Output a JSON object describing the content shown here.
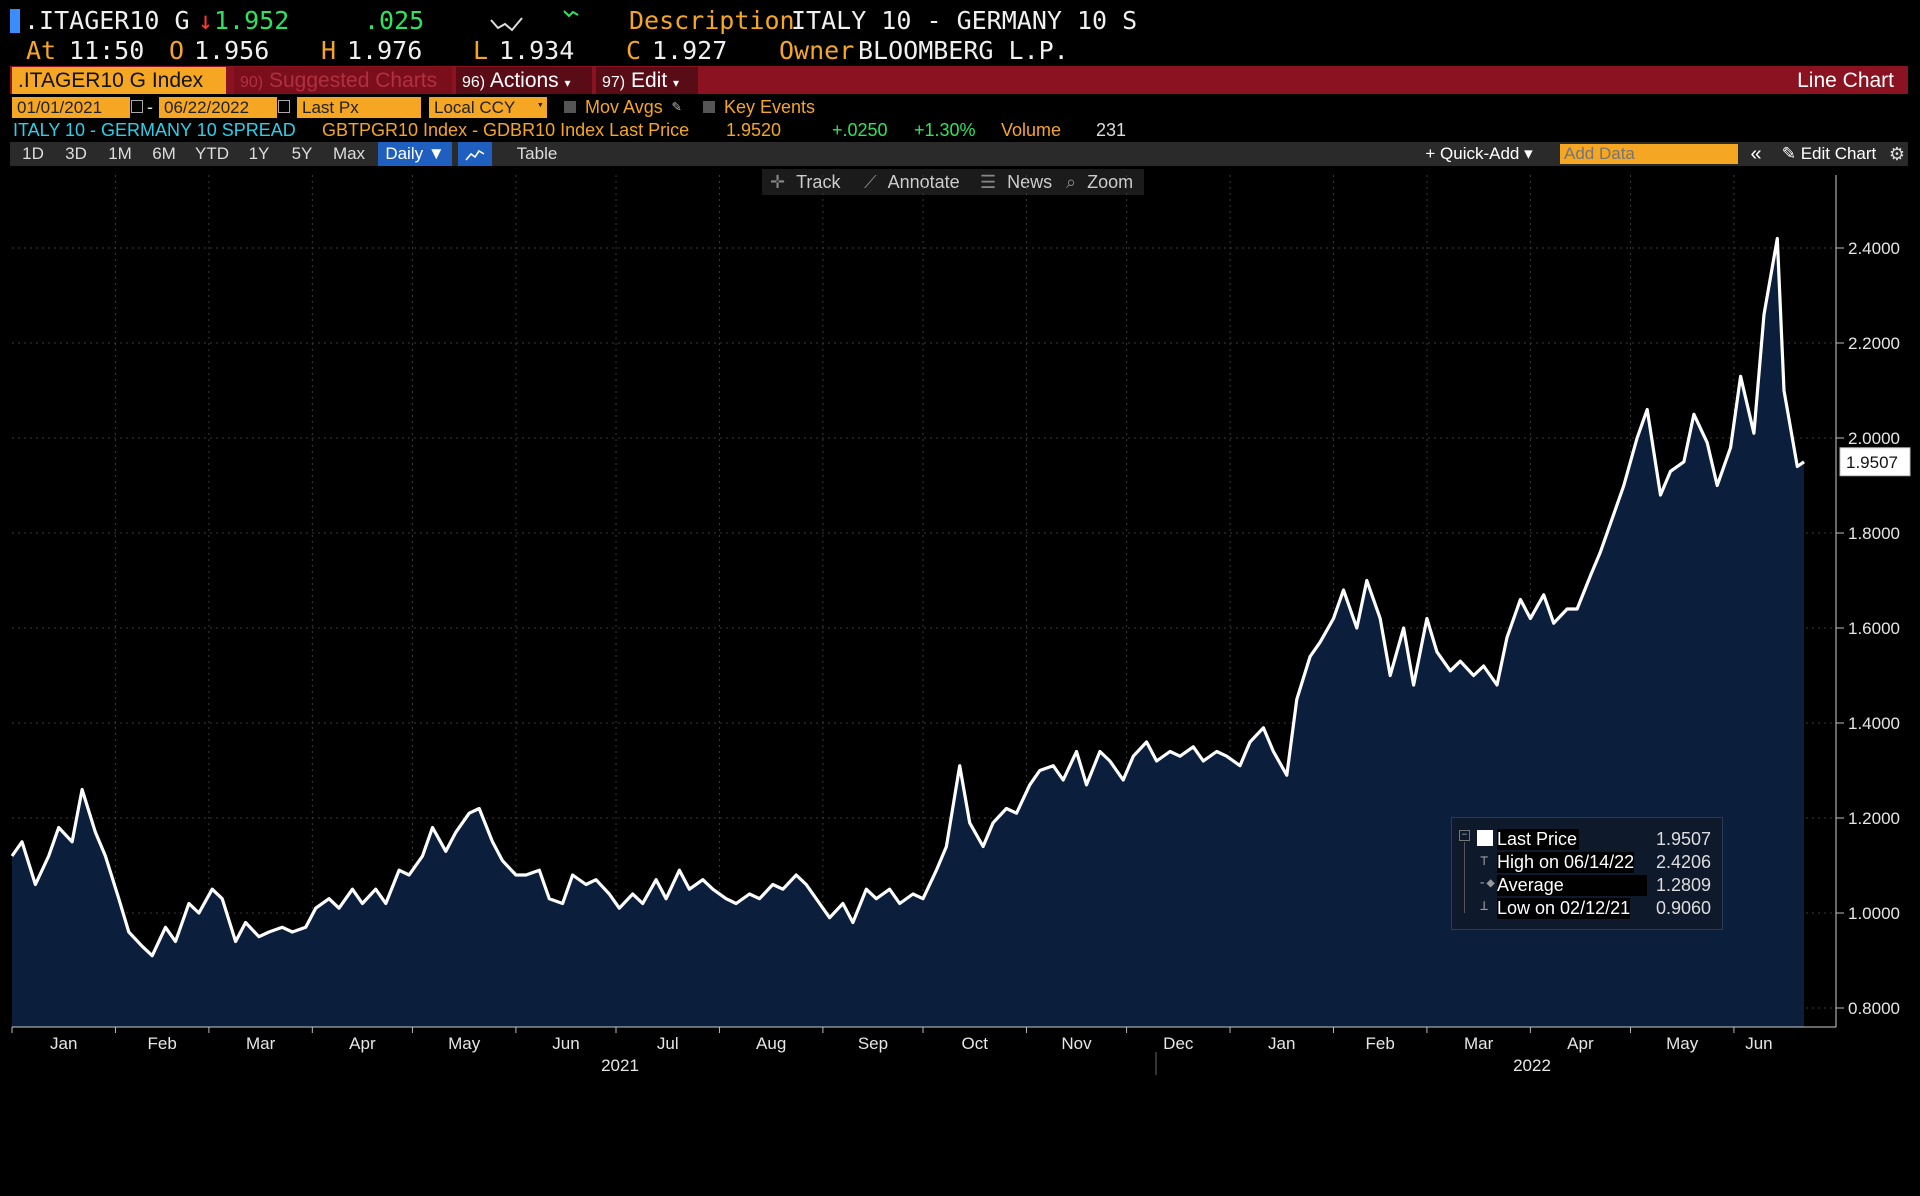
{
  "header": {
    "ticker": ".ITAGER10 G",
    "arrow": "↓",
    "last": "1.952",
    "change": ".025",
    "desc_label": "Description",
    "desc_value": "ITALY 10 - GERMANY 10 S",
    "at_label": "At",
    "at_value": "11:50",
    "open_label": "O",
    "open_value": "1.956",
    "high_label": "H",
    "high_value": "1.976",
    "low_label": "L",
    "low_value": "1.934",
    "close_label": "C",
    "close_value": "1.927",
    "owner_label": "Owner",
    "owner_value": "BLOOMBERG L.P."
  },
  "menubar": {
    "security": ".ITAGER10 G Index",
    "suggested_num": "90)",
    "suggested": "Suggested Charts",
    "actions_num": "96)",
    "actions": "Actions",
    "edit_num": "97)",
    "edit": "Edit",
    "chart_type": "Line Chart"
  },
  "settings": {
    "start_date": "01/01/2021",
    "dash": "-",
    "end_date": "06/22/2022",
    "field": "Last Px",
    "currency": "Local CCY",
    "mov_avgs": "Mov Avgs",
    "key_events": "Key Events"
  },
  "legend_row": {
    "name": "ITALY 10 - GERMANY 10 SPREAD",
    "formula": "GBTPGR10 Index - GDBR10 Index Last Price",
    "price": "1.9520",
    "chg": "+.0250",
    "pct": "+1.30%",
    "vol_label": "Volume",
    "vol": "231"
  },
  "toolbar": {
    "periods": [
      "1D",
      "3D",
      "1M",
      "6M",
      "YTD",
      "1Y",
      "5Y",
      "Max"
    ],
    "frequency": "Daily ▼",
    "table": "Table",
    "quick_add": "+ Quick-Add ▾",
    "add_data_placeholder": "Add Data",
    "collapse": "«",
    "edit_chart": "Edit Chart"
  },
  "tools": {
    "track": "Track",
    "annotate": "Annotate",
    "news": "News",
    "zoom": "Zoom"
  },
  "colors": {
    "orange": "#f5a623",
    "red_bar": "#8b1220",
    "area_fill": "#0b1f3d",
    "line": "#ffffff",
    "green": "#2ee35f"
  },
  "chart_data": {
    "type": "area",
    "title": "",
    "xlabel": "",
    "ylabel": "",
    "ylim": [
      0.78,
      2.5
    ],
    "yticks": [
      "2.4000",
      "2.2000",
      "2.0000",
      "1.8000",
      "1.6000",
      "1.4000",
      "1.2000",
      "1.0000",
      "0.8000"
    ],
    "ytick_values": [
      2.4,
      2.2,
      2.0,
      1.8,
      1.6,
      1.4,
      1.2,
      1.0,
      0.8
    ],
    "month_labels": [
      "Jan",
      "Feb",
      "Mar",
      "Apr",
      "May",
      "Jun",
      "Jul",
      "Aug",
      "Sep",
      "Oct",
      "Nov",
      "Dec",
      "Jan",
      "Feb",
      "Mar",
      "Apr",
      "May",
      "Jun"
    ],
    "year_labels": [
      "2021",
      "2022"
    ],
    "last_value_label": "1.9507",
    "grid": true,
    "series": [
      {
        "name": "Last Price",
        "points": [
          [
            "2021-01-01",
            1.12
          ],
          [
            "2021-01-04",
            1.15
          ],
          [
            "2021-01-08",
            1.06
          ],
          [
            "2021-01-12",
            1.12
          ],
          [
            "2021-01-15",
            1.18
          ],
          [
            "2021-01-19",
            1.15
          ],
          [
            "2021-01-22",
            1.26
          ],
          [
            "2021-01-26",
            1.17
          ],
          [
            "2021-01-29",
            1.12
          ],
          [
            "2021-02-02",
            1.03
          ],
          [
            "2021-02-05",
            0.96
          ],
          [
            "2021-02-09",
            0.93
          ],
          [
            "2021-02-12",
            0.91
          ],
          [
            "2021-02-16",
            0.97
          ],
          [
            "2021-02-19",
            0.94
          ],
          [
            "2021-02-23",
            1.02
          ],
          [
            "2021-02-26",
            1.0
          ],
          [
            "2021-03-02",
            1.05
          ],
          [
            "2021-03-05",
            1.03
          ],
          [
            "2021-03-09",
            0.94
          ],
          [
            "2021-03-12",
            0.98
          ],
          [
            "2021-03-16",
            0.95
          ],
          [
            "2021-03-19",
            0.96
          ],
          [
            "2021-03-23",
            0.97
          ],
          [
            "2021-03-26",
            0.96
          ],
          [
            "2021-03-30",
            0.97
          ],
          [
            "2021-04-02",
            1.01
          ],
          [
            "2021-04-06",
            1.03
          ],
          [
            "2021-04-09",
            1.01
          ],
          [
            "2021-04-13",
            1.05
          ],
          [
            "2021-04-16",
            1.02
          ],
          [
            "2021-04-20",
            1.05
          ],
          [
            "2021-04-23",
            1.02
          ],
          [
            "2021-04-27",
            1.09
          ],
          [
            "2021-04-30",
            1.08
          ],
          [
            "2021-05-04",
            1.12
          ],
          [
            "2021-05-07",
            1.18
          ],
          [
            "2021-05-11",
            1.13
          ],
          [
            "2021-05-14",
            1.17
          ],
          [
            "2021-05-18",
            1.21
          ],
          [
            "2021-05-21",
            1.22
          ],
          [
            "2021-05-25",
            1.15
          ],
          [
            "2021-05-28",
            1.11
          ],
          [
            "2021-06-01",
            1.08
          ],
          [
            "2021-06-04",
            1.08
          ],
          [
            "2021-06-08",
            1.09
          ],
          [
            "2021-06-11",
            1.03
          ],
          [
            "2021-06-15",
            1.02
          ],
          [
            "2021-06-18",
            1.08
          ],
          [
            "2021-06-22",
            1.06
          ],
          [
            "2021-06-25",
            1.07
          ],
          [
            "2021-06-29",
            1.04
          ],
          [
            "2021-07-02",
            1.01
          ],
          [
            "2021-07-06",
            1.04
          ],
          [
            "2021-07-09",
            1.02
          ],
          [
            "2021-07-13",
            1.07
          ],
          [
            "2021-07-16",
            1.03
          ],
          [
            "2021-07-20",
            1.09
          ],
          [
            "2021-07-23",
            1.05
          ],
          [
            "2021-07-27",
            1.07
          ],
          [
            "2021-07-30",
            1.05
          ],
          [
            "2021-08-03",
            1.03
          ],
          [
            "2021-08-06",
            1.02
          ],
          [
            "2021-08-10",
            1.04
          ],
          [
            "2021-08-13",
            1.03
          ],
          [
            "2021-08-17",
            1.06
          ],
          [
            "2021-08-20",
            1.05
          ],
          [
            "2021-08-24",
            1.08
          ],
          [
            "2021-08-27",
            1.06
          ],
          [
            "2021-08-31",
            1.02
          ],
          [
            "2021-09-03",
            0.99
          ],
          [
            "2021-09-07",
            1.02
          ],
          [
            "2021-09-10",
            0.98
          ],
          [
            "2021-09-14",
            1.05
          ],
          [
            "2021-09-17",
            1.03
          ],
          [
            "2021-09-21",
            1.05
          ],
          [
            "2021-09-24",
            1.02
          ],
          [
            "2021-09-28",
            1.04
          ],
          [
            "2021-10-01",
            1.03
          ],
          [
            "2021-10-05",
            1.09
          ],
          [
            "2021-10-08",
            1.14
          ],
          [
            "2021-10-12",
            1.31
          ],
          [
            "2021-10-15",
            1.19
          ],
          [
            "2021-10-19",
            1.14
          ],
          [
            "2021-10-22",
            1.19
          ],
          [
            "2021-10-26",
            1.22
          ],
          [
            "2021-10-29",
            1.21
          ],
          [
            "2021-11-02",
            1.27
          ],
          [
            "2021-11-05",
            1.3
          ],
          [
            "2021-11-09",
            1.31
          ],
          [
            "2021-11-12",
            1.28
          ],
          [
            "2021-11-16",
            1.34
          ],
          [
            "2021-11-19",
            1.27
          ],
          [
            "2021-11-23",
            1.34
          ],
          [
            "2021-11-26",
            1.32
          ],
          [
            "2021-11-30",
            1.28
          ],
          [
            "2021-12-03",
            1.33
          ],
          [
            "2021-12-07",
            1.36
          ],
          [
            "2021-12-10",
            1.32
          ],
          [
            "2021-12-14",
            1.34
          ],
          [
            "2021-12-17",
            1.33
          ],
          [
            "2021-12-21",
            1.35
          ],
          [
            "2021-12-24",
            1.32
          ],
          [
            "2021-12-28",
            1.34
          ],
          [
            "2021-12-31",
            1.33
          ],
          [
            "2022-01-04",
            1.31
          ],
          [
            "2022-01-07",
            1.36
          ],
          [
            "2022-01-11",
            1.39
          ],
          [
            "2022-01-14",
            1.34
          ],
          [
            "2022-01-18",
            1.29
          ],
          [
            "2022-01-21",
            1.45
          ],
          [
            "2022-01-25",
            1.54
          ],
          [
            "2022-01-28",
            1.57
          ],
          [
            "2022-02-01",
            1.62
          ],
          [
            "2022-02-04",
            1.68
          ],
          [
            "2022-02-08",
            1.6
          ],
          [
            "2022-02-11",
            1.7
          ],
          [
            "2022-02-15",
            1.62
          ],
          [
            "2022-02-18",
            1.5
          ],
          [
            "2022-02-22",
            1.6
          ],
          [
            "2022-02-25",
            1.48
          ],
          [
            "2022-03-01",
            1.62
          ],
          [
            "2022-03-04",
            1.55
          ],
          [
            "2022-03-08",
            1.51
          ],
          [
            "2022-03-11",
            1.53
          ],
          [
            "2022-03-15",
            1.5
          ],
          [
            "2022-03-18",
            1.52
          ],
          [
            "2022-03-22",
            1.48
          ],
          [
            "2022-03-25",
            1.58
          ],
          [
            "2022-03-29",
            1.66
          ],
          [
            "2022-04-01",
            1.62
          ],
          [
            "2022-04-05",
            1.67
          ],
          [
            "2022-04-08",
            1.61
          ],
          [
            "2022-04-12",
            1.64
          ],
          [
            "2022-04-15",
            1.64
          ],
          [
            "2022-04-19",
            1.71
          ],
          [
            "2022-04-22",
            1.76
          ],
          [
            "2022-04-26",
            1.84
          ],
          [
            "2022-04-29",
            1.9
          ],
          [
            "2022-05-03",
            2.0
          ],
          [
            "2022-05-06",
            2.06
          ],
          [
            "2022-05-10",
            1.88
          ],
          [
            "2022-05-13",
            1.93
          ],
          [
            "2022-05-17",
            1.95
          ],
          [
            "2022-05-20",
            2.05
          ],
          [
            "2022-05-24",
            1.99
          ],
          [
            "2022-05-27",
            1.9
          ],
          [
            "2022-05-31",
            1.98
          ],
          [
            "2022-06-03",
            2.13
          ],
          [
            "2022-06-07",
            2.01
          ],
          [
            "2022-06-10",
            2.26
          ],
          [
            "2022-06-14",
            2.42
          ],
          [
            "2022-06-16",
            2.1
          ],
          [
            "2022-06-20",
            1.94
          ],
          [
            "2022-06-22",
            1.95
          ]
        ]
      }
    ],
    "summary": {
      "last_label": "Last Price",
      "last_value": "1.9507",
      "high_label": "High on 06/14/22",
      "high_value": "2.4206",
      "avg_label": "Average",
      "avg_value": "1.2809",
      "low_label": "Low on 02/12/21",
      "low_value": "0.9060"
    }
  }
}
